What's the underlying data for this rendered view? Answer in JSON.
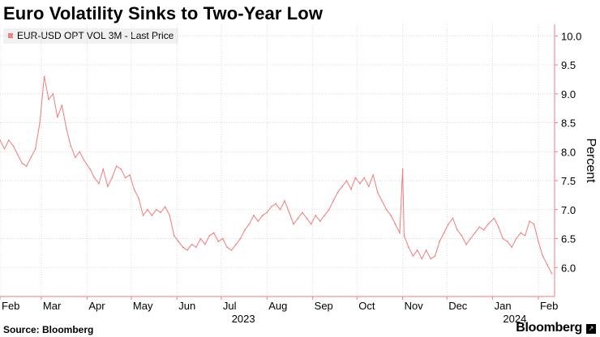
{
  "title": "Euro Volatility Sinks to Two-Year Low",
  "legend_label": "EUR-USD OPT VOL 3M - Last Price",
  "source": "Source: Bloomberg",
  "brand": "Bloomberg",
  "colors": {
    "series": "#f27b7b",
    "axis": "#f27b7b",
    "grid": "#d9d9d9"
  },
  "chart_data": {
    "type": "line",
    "title": "Euro Volatility Sinks to Two-Year Low",
    "ylabel": "Percent",
    "xlabel": "",
    "ylim": [
      5.5,
      10.2
    ],
    "yticks": [
      6.0,
      6.5,
      7.0,
      7.5,
      8.0,
      8.5,
      9.0,
      9.5,
      10.0
    ],
    "y_axis_side": "right",
    "grid": true,
    "legend_position": "top-left",
    "x_range": [
      "2023-02-01",
      "2024-02-12"
    ],
    "month_ticks": [
      {
        "label": "Feb",
        "date": "2023-02-01"
      },
      {
        "label": "Mar",
        "date": "2023-03-01"
      },
      {
        "label": "Apr",
        "date": "2023-04-01"
      },
      {
        "label": "May",
        "date": "2023-05-01"
      },
      {
        "label": "Jun",
        "date": "2023-06-01"
      },
      {
        "label": "Jul",
        "date": "2023-07-01"
      },
      {
        "label": "Aug",
        "date": "2023-08-01"
      },
      {
        "label": "Sep",
        "date": "2023-09-01"
      },
      {
        "label": "Oct",
        "date": "2023-10-01"
      },
      {
        "label": "Nov",
        "date": "2023-11-01"
      },
      {
        "label": "Dec",
        "date": "2023-12-01"
      },
      {
        "label": "Jan",
        "date": "2024-01-01"
      },
      {
        "label": "Feb",
        "date": "2024-02-01"
      }
    ],
    "year_labels": [
      {
        "label": "2023",
        "date": "2023-07-16"
      },
      {
        "label": "2024",
        "date": "2024-01-16"
      }
    ],
    "series": [
      {
        "name": "EUR-USD OPT VOL 3M - Last Price",
        "points": [
          [
            "2023-02-01",
            8.2
          ],
          [
            "2023-02-04",
            8.05
          ],
          [
            "2023-02-07",
            8.2
          ],
          [
            "2023-02-10",
            8.1
          ],
          [
            "2023-02-13",
            7.95
          ],
          [
            "2023-02-16",
            7.8
          ],
          [
            "2023-02-19",
            7.75
          ],
          [
            "2023-02-22",
            7.9
          ],
          [
            "2023-02-25",
            8.05
          ],
          [
            "2023-02-28",
            8.5
          ],
          [
            "2023-03-03",
            9.3
          ],
          [
            "2023-03-06",
            8.9
          ],
          [
            "2023-03-09",
            9.0
          ],
          [
            "2023-03-12",
            8.6
          ],
          [
            "2023-03-15",
            8.8
          ],
          [
            "2023-03-18",
            8.4
          ],
          [
            "2023-03-21",
            8.1
          ],
          [
            "2023-03-24",
            7.9
          ],
          [
            "2023-03-27",
            8.0
          ],
          [
            "2023-03-30",
            7.85
          ],
          [
            "2023-04-03",
            7.7
          ],
          [
            "2023-04-06",
            7.55
          ],
          [
            "2023-04-09",
            7.45
          ],
          [
            "2023-04-12",
            7.7
          ],
          [
            "2023-04-15",
            7.4
          ],
          [
            "2023-04-18",
            7.55
          ],
          [
            "2023-04-21",
            7.75
          ],
          [
            "2023-04-24",
            7.7
          ],
          [
            "2023-04-27",
            7.55
          ],
          [
            "2023-04-30",
            7.6
          ],
          [
            "2023-05-03",
            7.35
          ],
          [
            "2023-05-06",
            7.2
          ],
          [
            "2023-05-09",
            6.9
          ],
          [
            "2023-05-12",
            7.0
          ],
          [
            "2023-05-15",
            6.9
          ],
          [
            "2023-05-18",
            7.0
          ],
          [
            "2023-05-21",
            6.95
          ],
          [
            "2023-05-24",
            7.05
          ],
          [
            "2023-05-27",
            6.9
          ],
          [
            "2023-05-30",
            6.55
          ],
          [
            "2023-06-02",
            6.45
          ],
          [
            "2023-06-05",
            6.35
          ],
          [
            "2023-06-08",
            6.3
          ],
          [
            "2023-06-11",
            6.4
          ],
          [
            "2023-06-14",
            6.35
          ],
          [
            "2023-06-17",
            6.5
          ],
          [
            "2023-06-20",
            6.4
          ],
          [
            "2023-06-23",
            6.55
          ],
          [
            "2023-06-26",
            6.6
          ],
          [
            "2023-06-29",
            6.45
          ],
          [
            "2023-07-02",
            6.5
          ],
          [
            "2023-07-05",
            6.35
          ],
          [
            "2023-07-08",
            6.3
          ],
          [
            "2023-07-11",
            6.4
          ],
          [
            "2023-07-14",
            6.5
          ],
          [
            "2023-07-17",
            6.65
          ],
          [
            "2023-07-20",
            6.75
          ],
          [
            "2023-07-23",
            6.9
          ],
          [
            "2023-07-26",
            6.8
          ],
          [
            "2023-07-29",
            6.9
          ],
          [
            "2023-08-01",
            6.95
          ],
          [
            "2023-08-04",
            7.05
          ],
          [
            "2023-08-07",
            7.1
          ],
          [
            "2023-08-10",
            7.0
          ],
          [
            "2023-08-13",
            7.15
          ],
          [
            "2023-08-16",
            6.95
          ],
          [
            "2023-08-19",
            6.75
          ],
          [
            "2023-08-22",
            6.85
          ],
          [
            "2023-08-25",
            6.95
          ],
          [
            "2023-08-28",
            6.85
          ],
          [
            "2023-08-31",
            6.75
          ],
          [
            "2023-09-03",
            6.9
          ],
          [
            "2023-09-06",
            6.8
          ],
          [
            "2023-09-09",
            6.9
          ],
          [
            "2023-09-12",
            7.0
          ],
          [
            "2023-09-15",
            7.15
          ],
          [
            "2023-09-18",
            7.3
          ],
          [
            "2023-09-21",
            7.4
          ],
          [
            "2023-09-24",
            7.5
          ],
          [
            "2023-09-27",
            7.35
          ],
          [
            "2023-09-30",
            7.55
          ],
          [
            "2023-10-03",
            7.45
          ],
          [
            "2023-10-06",
            7.55
          ],
          [
            "2023-10-09",
            7.4
          ],
          [
            "2023-10-12",
            7.6
          ],
          [
            "2023-10-15",
            7.3
          ],
          [
            "2023-10-18",
            7.15
          ],
          [
            "2023-10-21",
            7.0
          ],
          [
            "2023-10-24",
            6.9
          ],
          [
            "2023-10-27",
            6.75
          ],
          [
            "2023-10-30",
            6.6
          ],
          [
            "2023-11-01",
            7.7
          ],
          [
            "2023-11-02",
            6.55
          ],
          [
            "2023-11-05",
            6.35
          ],
          [
            "2023-11-08",
            6.2
          ],
          [
            "2023-11-11",
            6.3
          ],
          [
            "2023-11-14",
            6.15
          ],
          [
            "2023-11-17",
            6.3
          ],
          [
            "2023-11-20",
            6.15
          ],
          [
            "2023-11-23",
            6.2
          ],
          [
            "2023-11-26",
            6.45
          ],
          [
            "2023-11-29",
            6.6
          ],
          [
            "2023-12-02",
            6.75
          ],
          [
            "2023-12-05",
            6.85
          ],
          [
            "2023-12-08",
            6.65
          ],
          [
            "2023-12-11",
            6.55
          ],
          [
            "2023-12-14",
            6.4
          ],
          [
            "2023-12-17",
            6.5
          ],
          [
            "2023-12-20",
            6.6
          ],
          [
            "2023-12-23",
            6.7
          ],
          [
            "2023-12-26",
            6.65
          ],
          [
            "2023-12-29",
            6.75
          ],
          [
            "2024-01-02",
            6.85
          ],
          [
            "2024-01-05",
            6.7
          ],
          [
            "2024-01-08",
            6.5
          ],
          [
            "2024-01-11",
            6.45
          ],
          [
            "2024-01-14",
            6.35
          ],
          [
            "2024-01-17",
            6.5
          ],
          [
            "2024-01-20",
            6.6
          ],
          [
            "2024-01-23",
            6.55
          ],
          [
            "2024-01-26",
            6.8
          ],
          [
            "2024-01-29",
            6.75
          ],
          [
            "2024-02-01",
            6.45
          ],
          [
            "2024-02-04",
            6.2
          ],
          [
            "2024-02-07",
            6.05
          ],
          [
            "2024-02-10",
            5.9
          ]
        ]
      }
    ]
  }
}
